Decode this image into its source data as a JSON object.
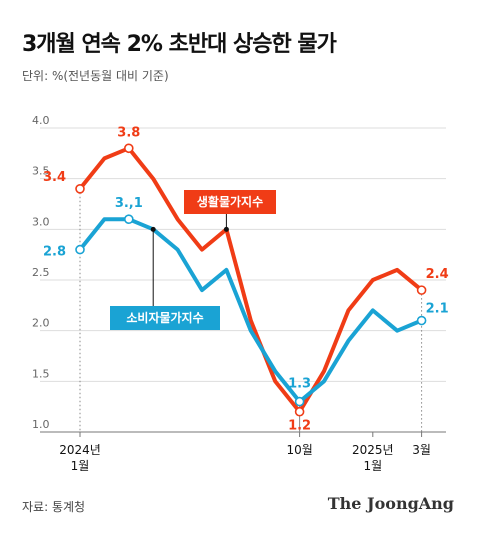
{
  "header": {
    "title": "3개월 연속 2% 초반대 상승한 물가",
    "subtitle": "단위: %(전년동월 대비 기준)"
  },
  "footer": {
    "source": "자료: 통계청",
    "logo": "The JoongAng"
  },
  "colors": {
    "living": "#f03c16",
    "consumer": "#1aa3d4",
    "axis": "#999999",
    "grid": "#dddddd"
  },
  "chart_data": {
    "type": "line",
    "ylim": [
      1.0,
      4.0
    ],
    "yticks": [
      "1.0",
      "1.5",
      "2.0",
      "2.5",
      "3.0",
      "3.5",
      "4.0"
    ],
    "grid": true,
    "x_tick_labels": [
      {
        "index": 0,
        "lines": [
          "2024년",
          "1월"
        ]
      },
      {
        "index": 9,
        "lines": [
          "10월"
        ]
      },
      {
        "index": 12,
        "lines": [
          "2025년",
          "1월"
        ]
      },
      {
        "index": 14,
        "lines": [
          "3월"
        ]
      }
    ],
    "series": [
      {
        "name": "생활물가지수",
        "color_key": "living",
        "values": [
          3.4,
          3.7,
          3.8,
          3.5,
          3.1,
          2.8,
          3.0,
          2.1,
          1.5,
          1.2,
          1.6,
          2.2,
          2.5,
          2.6,
          2.4
        ],
        "labels": [
          {
            "index": 0,
            "text": "3.4"
          },
          {
            "index": 2,
            "text": "3.8"
          },
          {
            "index": 9,
            "text": "1.2"
          },
          {
            "index": 14,
            "text": "2.4"
          }
        ]
      },
      {
        "name": "소비자물가지수",
        "color_key": "consumer",
        "values": [
          2.8,
          3.1,
          3.1,
          3.0,
          2.8,
          2.4,
          2.6,
          2.0,
          1.6,
          1.3,
          1.5,
          1.9,
          2.2,
          2.0,
          2.1
        ],
        "labels": [
          {
            "index": 0,
            "text": "2.8"
          },
          {
            "index": 2,
            "text": "3.,1"
          },
          {
            "index": 9,
            "text": "1.3"
          },
          {
            "index": 14,
            "text": "2.1"
          }
        ]
      }
    ]
  }
}
